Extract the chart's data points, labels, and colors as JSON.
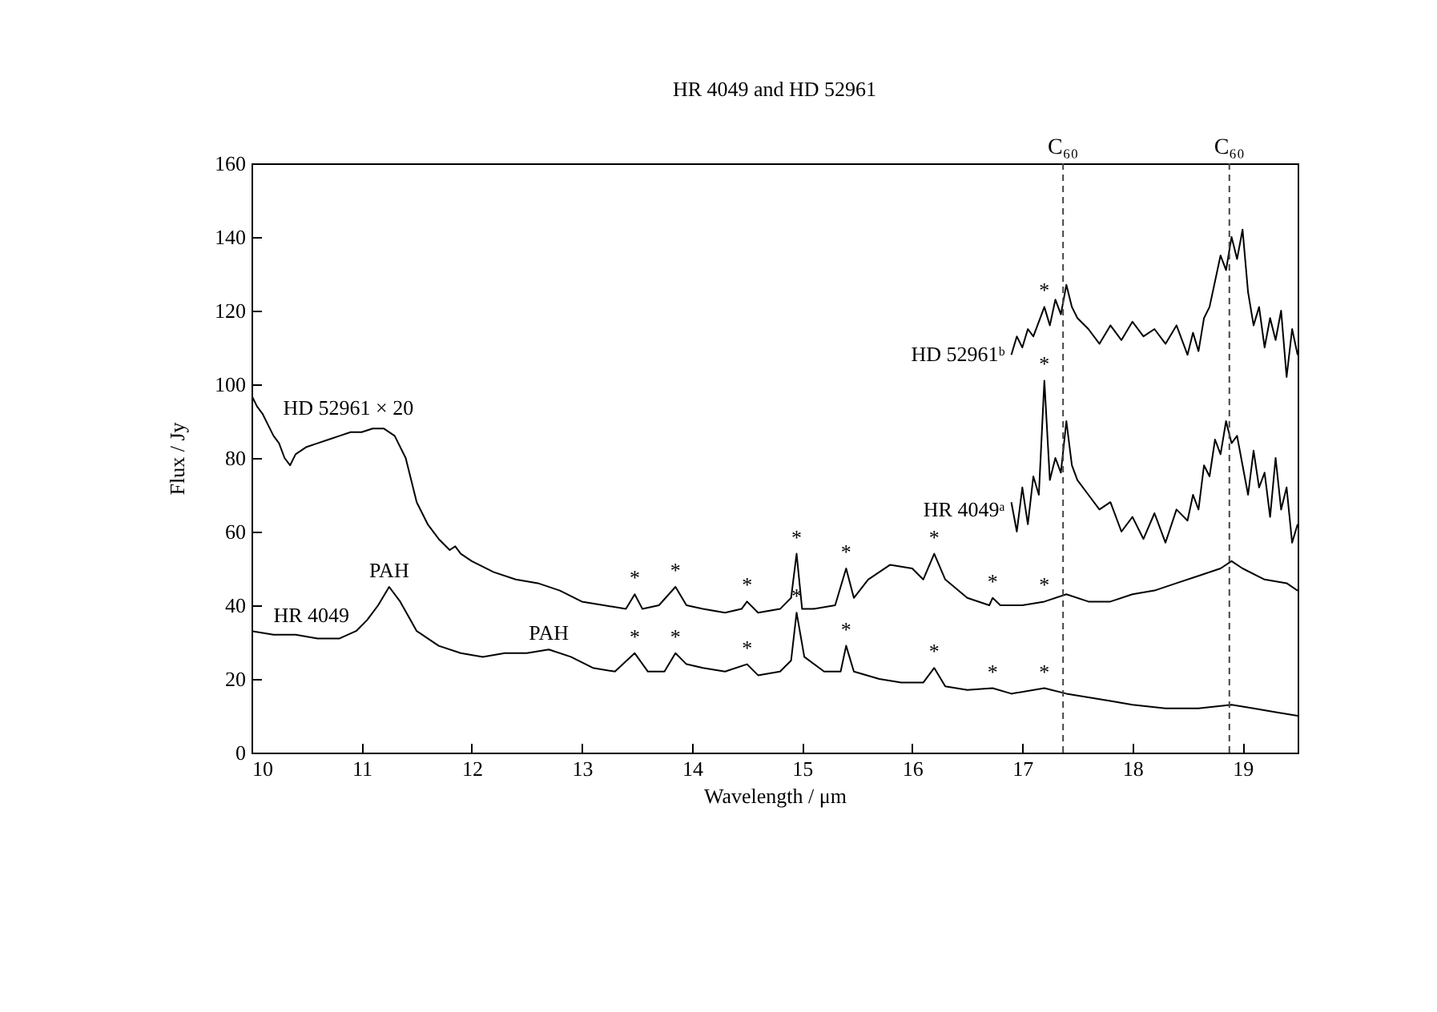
{
  "chart_data": {
    "type": "line",
    "title": "HR 4049 and HD 52961",
    "xlabel": "Wavelength / μm",
    "ylabel": "Flux / Jy",
    "xlim": [
      10,
      19.5
    ],
    "xticks": [
      10,
      11,
      12,
      13,
      14,
      15,
      16,
      17,
      18,
      19
    ],
    "ylim": [
      0,
      160
    ],
    "yticks": [
      0,
      20,
      40,
      60,
      80,
      100,
      120,
      140,
      160
    ],
    "grid": false,
    "legend": false,
    "marker": "none",
    "line_style": "solid",
    "series": [
      {
        "name": "HD 52961 × 20",
        "color": "#000000",
        "x": [
          10,
          10.05,
          10.1,
          10.15,
          10.2,
          10.25,
          10.3,
          10.35,
          10.4,
          10.5,
          10.6,
          10.7,
          10.8,
          10.9,
          11.0,
          11.1,
          11.2,
          11.3,
          11.4,
          11.5,
          11.6,
          11.7,
          11.8,
          11.85,
          11.9,
          12.0,
          12.2,
          12.4,
          12.6,
          12.8,
          13.0,
          13.2,
          13.4,
          13.48,
          13.55,
          13.7,
          13.85,
          13.95,
          14.1,
          14.3,
          14.45,
          14.5,
          14.6,
          14.8,
          14.9,
          14.95,
          15.0,
          15.1,
          15.3,
          15.4,
          15.47,
          15.6,
          15.8,
          16.0,
          16.1,
          16.2,
          16.3,
          16.5,
          16.7,
          16.73,
          16.8,
          17.0,
          17.2,
          17.4,
          17.6,
          17.8,
          18.0,
          18.2,
          18.4,
          18.6,
          18.8,
          18.9,
          19.0,
          19.2,
          19.4,
          19.5
        ],
        "values": [
          97,
          94,
          92,
          89,
          86,
          84,
          80,
          78,
          81,
          83,
          84,
          85,
          86,
          87,
          87,
          88,
          88,
          86,
          80,
          68,
          62,
          58,
          55,
          56,
          54,
          52,
          49,
          47,
          46,
          44,
          41,
          40,
          39,
          43,
          39,
          40,
          45,
          40,
          39,
          38,
          39,
          41,
          38,
          39,
          42,
          54,
          39,
          39,
          40,
          50,
          42,
          47,
          51,
          50,
          47,
          54,
          47,
          42,
          40,
          42,
          40,
          40,
          41,
          43,
          41,
          41,
          43,
          44,
          46,
          48,
          50,
          52,
          50,
          47,
          46,
          44
        ]
      },
      {
        "name": "HR 4049",
        "color": "#000000",
        "x": [
          10,
          10.2,
          10.4,
          10.6,
          10.8,
          10.95,
          11.05,
          11.15,
          11.25,
          11.35,
          11.5,
          11.7,
          11.9,
          12.1,
          12.3,
          12.5,
          12.7,
          12.9,
          13.1,
          13.3,
          13.48,
          13.6,
          13.75,
          13.85,
          13.95,
          14.1,
          14.3,
          14.5,
          14.6,
          14.8,
          14.9,
          14.95,
          15.02,
          15.2,
          15.35,
          15.4,
          15.47,
          15.7,
          15.9,
          16.1,
          16.2,
          16.3,
          16.5,
          16.73,
          16.9,
          17.2,
          17.4,
          17.6,
          17.8,
          18.0,
          18.3,
          18.6,
          18.9,
          19.1,
          19.3,
          19.5
        ],
        "values": [
          33,
          32,
          32,
          31,
          31,
          33,
          36,
          40,
          45,
          41,
          33,
          29,
          27,
          26,
          27,
          27,
          28,
          26,
          23,
          22,
          27,
          22,
          22,
          27,
          24,
          23,
          22,
          24,
          21,
          22,
          25,
          38,
          26,
          22,
          22,
          29,
          22,
          20,
          19,
          19,
          23,
          18,
          17,
          17.5,
          16,
          17.5,
          16,
          15,
          14,
          13,
          12,
          12,
          13,
          12,
          11,
          10
        ]
      },
      {
        "name": "HD 52961ᵇ",
        "color": "#000000",
        "x": [
          16.9,
          16.95,
          17.0,
          17.05,
          17.1,
          17.15,
          17.2,
          17.25,
          17.3,
          17.35,
          17.4,
          17.45,
          17.5,
          17.6,
          17.7,
          17.8,
          17.9,
          18.0,
          18.1,
          18.2,
          18.3,
          18.4,
          18.5,
          18.55,
          18.6,
          18.65,
          18.7,
          18.75,
          18.8,
          18.85,
          18.9,
          18.95,
          19.0,
          19.05,
          19.1,
          19.15,
          19.2,
          19.25,
          19.3,
          19.35,
          19.4,
          19.45,
          19.5
        ],
        "values": [
          108,
          113,
          110,
          115,
          113,
          117,
          121,
          116,
          123,
          119,
          127,
          121,
          118,
          115,
          111,
          116,
          112,
          117,
          113,
          115,
          111,
          116,
          108,
          114,
          109,
          118,
          121,
          128,
          135,
          131,
          140,
          134,
          142,
          125,
          116,
          121,
          110,
          118,
          112,
          120,
          102,
          115,
          108
        ]
      },
      {
        "name": "HR 4049ᵃ",
        "color": "#000000",
        "x": [
          16.9,
          16.95,
          17.0,
          17.05,
          17.1,
          17.15,
          17.2,
          17.25,
          17.3,
          17.35,
          17.4,
          17.45,
          17.5,
          17.6,
          17.7,
          17.8,
          17.9,
          18.0,
          18.1,
          18.2,
          18.3,
          18.4,
          18.5,
          18.55,
          18.6,
          18.65,
          18.7,
          18.75,
          18.8,
          18.85,
          18.9,
          18.95,
          19.0,
          19.05,
          19.1,
          19.15,
          19.2,
          19.25,
          19.3,
          19.35,
          19.4,
          19.45,
          19.5
        ],
        "values": [
          68,
          60,
          72,
          62,
          75,
          70,
          101,
          74,
          80,
          76,
          90,
          78,
          74,
          70,
          66,
          68,
          60,
          64,
          58,
          65,
          57,
          66,
          63,
          70,
          66,
          78,
          75,
          85,
          81,
          90,
          84,
          86,
          78,
          70,
          82,
          72,
          76,
          64,
          80,
          66,
          72,
          57,
          62
        ]
      }
    ],
    "ref_lines": [
      {
        "axis": "x",
        "value": 17.37,
        "label": "C₆₀",
        "line_style": "dashed"
      },
      {
        "axis": "x",
        "value": 18.88,
        "label": "C₆₀",
        "line_style": "dashed"
      }
    ],
    "annotations": [
      {
        "text": "PAH",
        "x": 11.25,
        "y": 45
      },
      {
        "text": "PAH",
        "x": 12.7,
        "y": 28
      },
      {
        "text": "*",
        "x": 13.48,
        "y": 43
      },
      {
        "text": "*",
        "x": 13.85,
        "y": 45
      },
      {
        "text": "*",
        "x": 14.5,
        "y": 41
      },
      {
        "text": "*",
        "x": 14.95,
        "y": 54
      },
      {
        "text": "*",
        "x": 15.4,
        "y": 50
      },
      {
        "text": "*",
        "x": 16.2,
        "y": 54
      },
      {
        "text": "*",
        "x": 16.73,
        "y": 42
      },
      {
        "text": "*",
        "x": 17.2,
        "y": 41
      },
      {
        "text": "*",
        "x": 13.48,
        "y": 27
      },
      {
        "text": "*",
        "x": 13.85,
        "y": 27
      },
      {
        "text": "*",
        "x": 14.5,
        "y": 24
      },
      {
        "text": "*",
        "x": 14.95,
        "y": 38
      },
      {
        "text": "*",
        "x": 15.4,
        "y": 29
      },
      {
        "text": "*",
        "x": 16.2,
        "y": 23
      },
      {
        "text": "*",
        "x": 16.73,
        "y": 17.5
      },
      {
        "text": "*",
        "x": 17.2,
        "y": 17.5
      },
      {
        "text": "*",
        "x": 17.2,
        "y": 121
      },
      {
        "text": "*",
        "x": 17.2,
        "y": 101
      }
    ]
  }
}
